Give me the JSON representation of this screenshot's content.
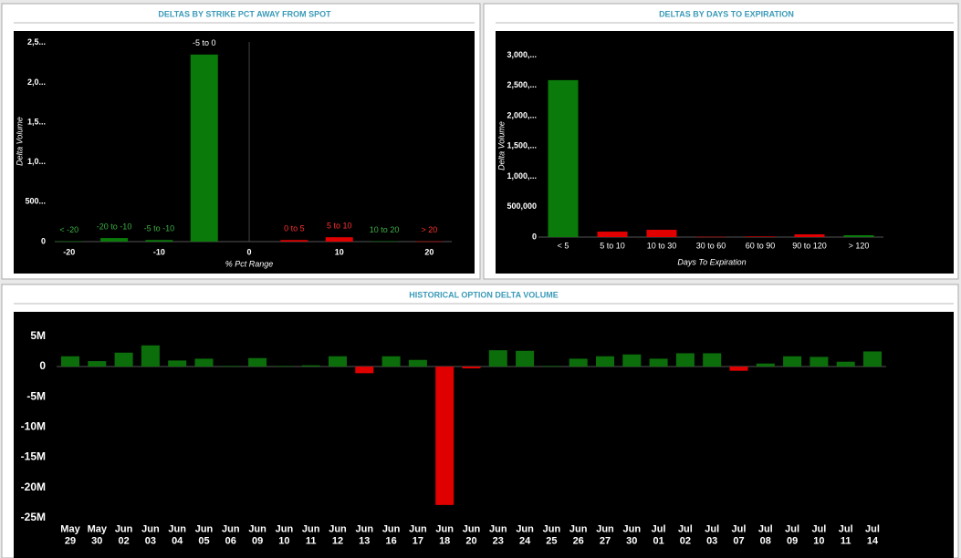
{
  "chart_data": [
    {
      "type": "bar",
      "title": "DELTAS BY STRIKE PCT AWAY FROM SPOT",
      "x_label": "% Pct Range",
      "y_label": "Delta Volume",
      "x": [
        -20,
        -15,
        -10,
        -5,
        5,
        10,
        15,
        20
      ],
      "categories": [
        "< -20",
        "-20 to -10",
        "-5 to -10",
        "-5 to 0",
        "0 to 5",
        "5 to 10",
        "10 to 20",
        "> 20"
      ],
      "values": [
        5000,
        45000,
        20000,
        2350000,
        20000,
        55000,
        5000,
        3000
      ],
      "colors": [
        "#0a7a0a",
        "#0a7a0a",
        "#0a7a0a",
        "#0a7a0a",
        "#e00000",
        "#e00000",
        "#0a7a0a",
        "#e00000"
      ],
      "label_colors": [
        "#3cb043",
        "#3cb043",
        "#3cb043",
        "#ffffff",
        "#ff3030",
        "#ff3030",
        "#3cb043",
        "#ff3030"
      ],
      "xlim": [
        -22,
        23
      ],
      "xticks": [
        -20,
        -10,
        0,
        10,
        20
      ],
      "ylim": [
        0,
        2600000
      ],
      "yticks": [
        0,
        {
          "value": 500000,
          "label": "500..."
        },
        {
          "value": 1000000,
          "label": "1,0..."
        },
        {
          "value": 1500000,
          "label": "1,5..."
        },
        {
          "value": 2000000,
          "label": "2,0..."
        },
        {
          "value": 2500000,
          "label": "2,5..."
        }
      ]
    },
    {
      "type": "bar",
      "title": "DELTAS BY DAYS TO EXPIRATION",
      "x_label": "Days To Expiration",
      "y_label": "Delta Volume",
      "categories": [
        "< 5",
        "5 to 10",
        "10 to 30",
        "30 to 60",
        "60 to 90",
        "90 to 120",
        "> 120"
      ],
      "values": [
        2590000,
        90000,
        120000,
        5000,
        10000,
        45000,
        30000
      ],
      "colors": [
        "#0a7a0a",
        "#e00000",
        "#e00000",
        "#e00000",
        "#e00000",
        "#e00000",
        "#0a7a0a"
      ],
      "ylim": [
        0,
        3100000
      ],
      "yticks": [
        0,
        {
          "value": 500000,
          "label": "500,000"
        },
        {
          "value": 1000000,
          "label": "1,000,..."
        },
        {
          "value": 1500000,
          "label": "1,500,..."
        },
        {
          "value": 2000000,
          "label": "2,000,..."
        },
        {
          "value": 2500000,
          "label": "2,500,..."
        },
        {
          "value": 3000000,
          "label": "3,000,..."
        }
      ]
    },
    {
      "type": "bar",
      "title": "HISTORICAL OPTION DELTA VOLUME",
      "categories": [
        [
          "May",
          "29"
        ],
        [
          "May",
          "30"
        ],
        [
          "Jun",
          "02"
        ],
        [
          "Jun",
          "03"
        ],
        [
          "Jun",
          "04"
        ],
        [
          "Jun",
          "05"
        ],
        [
          "Jun",
          "06"
        ],
        [
          "Jun",
          "09"
        ],
        [
          "Jun",
          "10"
        ],
        [
          "Jun",
          "11"
        ],
        [
          "Jun",
          "12"
        ],
        [
          "Jun",
          "13"
        ],
        [
          "Jun",
          "16"
        ],
        [
          "Jun",
          "17"
        ],
        [
          "Jun",
          "18"
        ],
        [
          "Jun",
          "20"
        ],
        [
          "Jun",
          "23"
        ],
        [
          "Jun",
          "24"
        ],
        [
          "Jun",
          "25"
        ],
        [
          "Jun",
          "26"
        ],
        [
          "Jun",
          "27"
        ],
        [
          "Jun",
          "30"
        ],
        [
          "Jul",
          "01"
        ],
        [
          "Jul",
          "02"
        ],
        [
          "Jul",
          "03"
        ],
        [
          "Jul",
          "07"
        ],
        [
          "Jul",
          "08"
        ],
        [
          "Jul",
          "09"
        ],
        [
          "Jul",
          "10"
        ],
        [
          "Jul",
          "11"
        ],
        [
          "Jul",
          "14"
        ]
      ],
      "values": [
        1700000,
        900000,
        2300000,
        3500000,
        1000000,
        1300000,
        100000,
        1400000,
        100000,
        200000,
        1700000,
        -1100000,
        1700000,
        1100000,
        -22900000,
        -300000,
        2700000,
        2600000,
        100000,
        1300000,
        1700000,
        2000000,
        1300000,
        2200000,
        2200000,
        -700000,
        500000,
        1700000,
        1600000,
        800000,
        2500000
      ],
      "positive_color": "#0b6e0b",
      "negative_color": "#e00000",
      "ylim": [
        -26000000,
        7500000
      ],
      "yticks": [
        {
          "value": 5000000,
          "label": "5M"
        },
        0,
        {
          "value": -5000000,
          "label": "-5M"
        },
        {
          "value": -10000000,
          "label": "-10M"
        },
        {
          "value": -15000000,
          "label": "-15M"
        },
        {
          "value": -20000000,
          "label": "-20M"
        },
        {
          "value": -25000000,
          "label": "-25M"
        }
      ]
    }
  ]
}
